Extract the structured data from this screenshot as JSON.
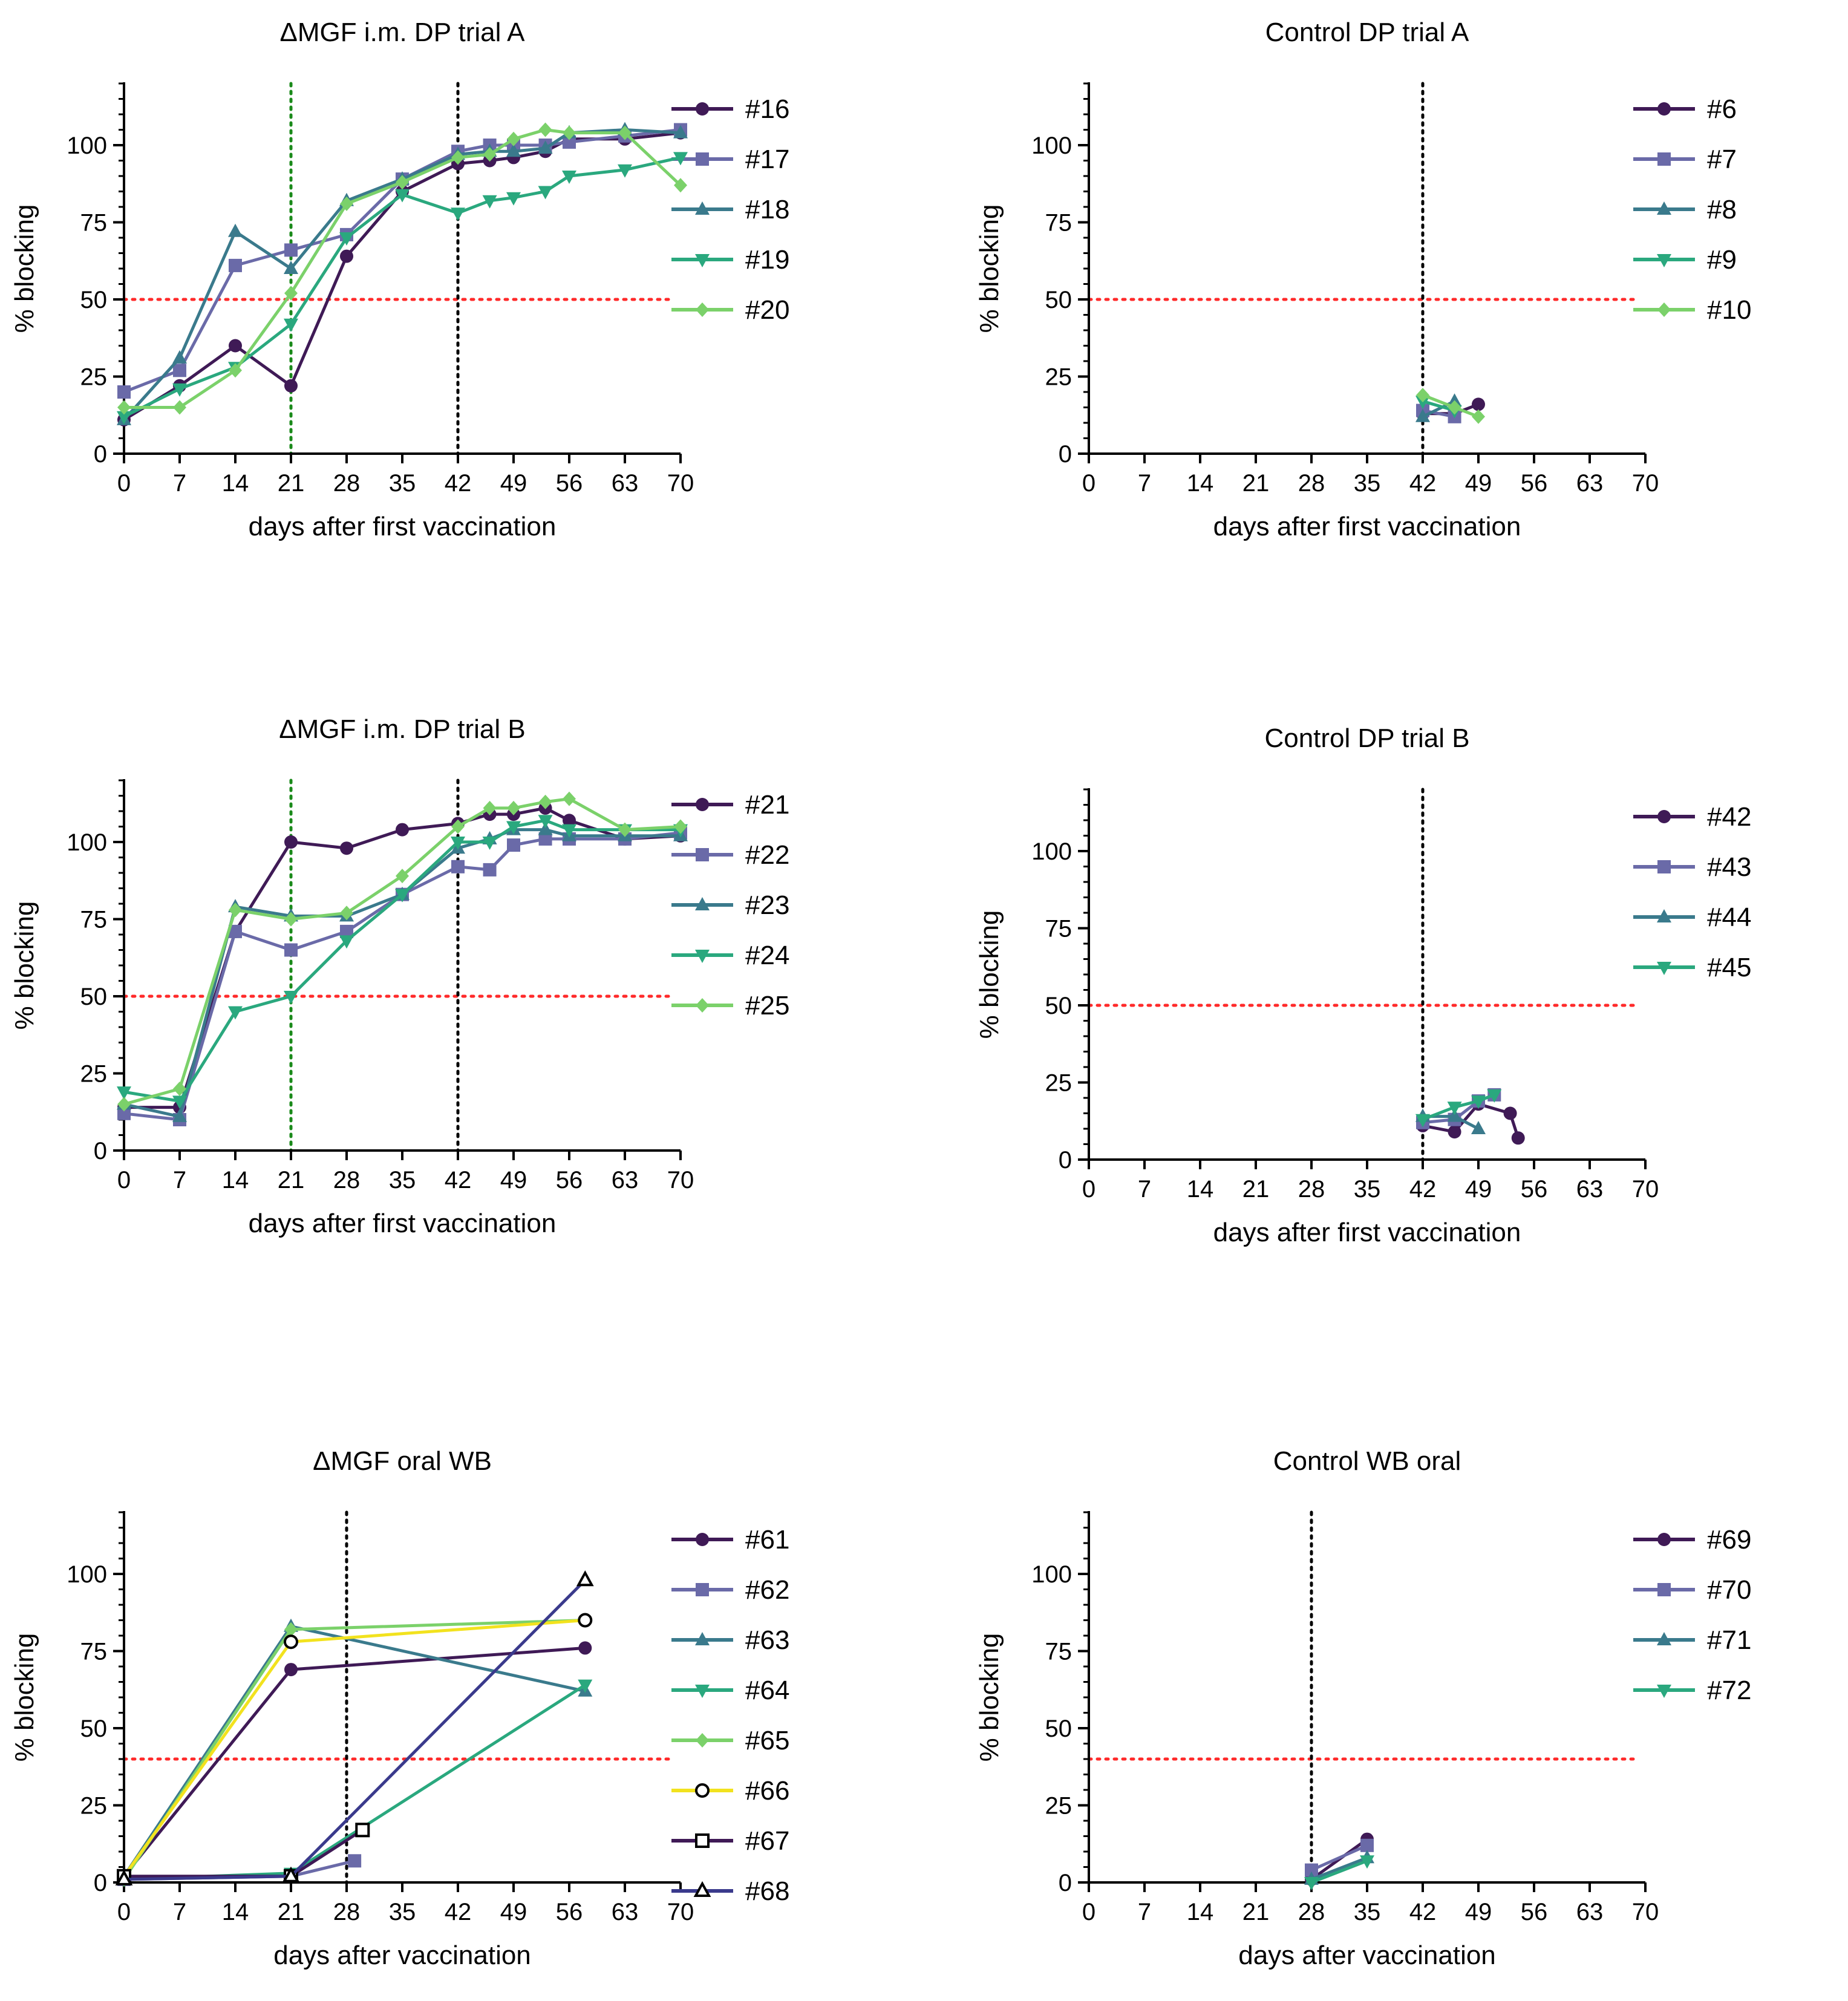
{
  "figure": {
    "background": "#ffffff"
  },
  "charts": [
    {
      "type": "line",
      "title": "ΔMGF i.m. DP trial A",
      "xlabel": "days after first vaccination",
      "ylabel": "% blocking",
      "xlim": [
        0,
        70
      ],
      "ylim": [
        0,
        120
      ],
      "xticks": [
        "0",
        "7",
        "14",
        "21",
        "28",
        "35",
        "42",
        "49",
        "56",
        "63",
        "70"
      ],
      "yticks": [
        "0",
        "25",
        "50",
        "75",
        "100"
      ],
      "threshold": 50,
      "vlines": [
        {
          "x": 21,
          "color": "#1a8a1a"
        },
        {
          "x": 42,
          "color": "#000000"
        }
      ],
      "series": [
        {
          "name": "#16",
          "color": "#3f1a56",
          "marker": "circle",
          "x": [
            0,
            7,
            14,
            21,
            28,
            35,
            42,
            46,
            49,
            53,
            56,
            63,
            70
          ],
          "y": [
            11,
            22,
            35,
            22,
            64,
            85,
            94,
            95,
            96,
            98,
            102,
            102,
            104
          ]
        },
        {
          "name": "#17",
          "color": "#6a6aa8",
          "marker": "square",
          "x": [
            0,
            7,
            14,
            21,
            28,
            35,
            42,
            46,
            49,
            53,
            56,
            63,
            70
          ],
          "y": [
            20,
            27,
            61,
            66,
            71,
            89,
            98,
            100,
            100,
            100,
            101,
            103,
            105
          ]
        },
        {
          "name": "#18",
          "color": "#3a7a8c",
          "marker": "triangle-up",
          "x": [
            0,
            7,
            14,
            21,
            28,
            35,
            42,
            46,
            49,
            53,
            56,
            63,
            70
          ],
          "y": [
            11,
            31,
            72,
            60,
            82,
            89,
            97,
            98,
            98,
            99,
            104,
            105,
            104
          ]
        },
        {
          "name": "#19",
          "color": "#2aa87e",
          "marker": "triangle-down",
          "x": [
            0,
            7,
            14,
            21,
            28,
            35,
            42,
            46,
            49,
            53,
            56,
            63,
            70
          ],
          "y": [
            12,
            21,
            28,
            42,
            70,
            84,
            78,
            82,
            83,
            85,
            90,
            92,
            96
          ]
        },
        {
          "name": "#20",
          "color": "#7bd16a",
          "marker": "diamond",
          "x": [
            0,
            7,
            14,
            21,
            28,
            35,
            42,
            46,
            49,
            53,
            56,
            63,
            70
          ],
          "y": [
            15,
            15,
            27,
            52,
            81,
            88,
            96,
            97,
            102,
            105,
            104,
            104,
            87
          ]
        }
      ]
    },
    {
      "type": "line",
      "title": "Control DP trial A",
      "xlabel": "days after first vaccination",
      "ylabel": "% blocking",
      "xlim": [
        0,
        70
      ],
      "ylim": [
        0,
        120
      ],
      "xticks": [
        "0",
        "7",
        "14",
        "21",
        "28",
        "35",
        "42",
        "49",
        "56",
        "63",
        "70"
      ],
      "yticks": [
        "0",
        "25",
        "50",
        "75",
        "100"
      ],
      "threshold": 50,
      "vlines": [
        {
          "x": 42,
          "color": "#000000"
        }
      ],
      "series": [
        {
          "name": "#6",
          "color": "#3f1a56",
          "marker": "circle",
          "x": [
            42,
            46,
            49
          ],
          "y": [
            13,
            13,
            16
          ]
        },
        {
          "name": "#7",
          "color": "#6a6aa8",
          "marker": "square",
          "x": [
            42,
            46
          ],
          "y": [
            14,
            12
          ]
        },
        {
          "name": "#8",
          "color": "#3a7a8c",
          "marker": "triangle-up",
          "x": [
            42,
            46
          ],
          "y": [
            12,
            17
          ]
        },
        {
          "name": "#9",
          "color": "#2aa87e",
          "marker": "triangle-down",
          "x": [
            42,
            46
          ],
          "y": [
            17,
            14
          ]
        },
        {
          "name": "#10",
          "color": "#7bd16a",
          "marker": "diamond",
          "x": [
            42,
            46,
            49
          ],
          "y": [
            19,
            15,
            12
          ]
        }
      ]
    },
    {
      "type": "line",
      "title": "ΔMGF i.m. DP trial B",
      "xlabel": "days after first vaccination",
      "ylabel": "% blocking",
      "xlim": [
        0,
        70
      ],
      "ylim": [
        0,
        120
      ],
      "xticks": [
        "0",
        "7",
        "14",
        "21",
        "28",
        "35",
        "42",
        "49",
        "56",
        "63",
        "70"
      ],
      "yticks": [
        "0",
        "25",
        "50",
        "75",
        "100"
      ],
      "threshold": 50,
      "vlines": [
        {
          "x": 21,
          "color": "#1a8a1a"
        },
        {
          "x": 42,
          "color": "#000000"
        }
      ],
      "series": [
        {
          "name": "#21",
          "color": "#3f1a56",
          "marker": "circle",
          "x": [
            0,
            7,
            14,
            21,
            28,
            35,
            42,
            46,
            49,
            53,
            56,
            63,
            70
          ],
          "y": [
            14,
            14,
            71,
            100,
            98,
            104,
            106,
            109,
            109,
            111,
            107,
            101,
            102
          ]
        },
        {
          "name": "#22",
          "color": "#6a6aa8",
          "marker": "square",
          "x": [
            0,
            7,
            14,
            21,
            28,
            35,
            42,
            46,
            49,
            53,
            56,
            63,
            70
          ],
          "y": [
            12,
            10,
            71,
            65,
            71,
            83,
            92,
            91,
            99,
            101,
            101,
            101,
            103
          ]
        },
        {
          "name": "#23",
          "color": "#3a7a8c",
          "marker": "triangle-up",
          "x": [
            0,
            7,
            14,
            21,
            28,
            35,
            42,
            46,
            49,
            53,
            56,
            63,
            70
          ],
          "y": [
            15,
            11,
            79,
            76,
            76,
            83,
            98,
            101,
            104,
            104,
            102,
            102,
            102
          ]
        },
        {
          "name": "#24",
          "color": "#2aa87e",
          "marker": "triangle-down",
          "x": [
            0,
            7,
            14,
            21,
            28,
            35,
            42,
            46,
            49,
            53,
            56,
            63,
            70
          ],
          "y": [
            19,
            16,
            45,
            50,
            68,
            83,
            100,
            100,
            105,
            107,
            104,
            104,
            104
          ]
        },
        {
          "name": "#25",
          "color": "#7bd16a",
          "marker": "diamond",
          "x": [
            0,
            7,
            14,
            21,
            28,
            35,
            42,
            46,
            49,
            53,
            56,
            63,
            70
          ],
          "y": [
            15,
            20,
            78,
            75,
            77,
            89,
            105,
            111,
            111,
            113,
            114,
            104,
            105
          ]
        }
      ]
    },
    {
      "type": "line",
      "title": "Control DP trial B",
      "xlabel": "days after first vaccination",
      "ylabel": "% blocking",
      "xlim": [
        0,
        70
      ],
      "ylim": [
        0,
        120
      ],
      "xticks": [
        "0",
        "7",
        "14",
        "21",
        "28",
        "35",
        "42",
        "49",
        "56",
        "63",
        "70"
      ],
      "yticks": [
        "0",
        "25",
        "50",
        "75",
        "100"
      ],
      "threshold": 50,
      "vlines": [
        {
          "x": 42,
          "color": "#000000"
        }
      ],
      "series": [
        {
          "name": "#42",
          "color": "#3f1a56",
          "marker": "circle",
          "x": [
            42,
            46,
            49,
            53,
            54
          ],
          "y": [
            11,
            9,
            18,
            15,
            7
          ]
        },
        {
          "name": "#43",
          "color": "#6a6aa8",
          "marker": "square",
          "x": [
            42,
            46,
            49,
            51
          ],
          "y": [
            12,
            13,
            19,
            21
          ]
        },
        {
          "name": "#44",
          "color": "#3a7a8c",
          "marker": "triangle-up",
          "x": [
            42,
            46,
            49
          ],
          "y": [
            14,
            14,
            10
          ]
        },
        {
          "name": "#45",
          "color": "#2aa87e",
          "marker": "triangle-down",
          "x": [
            42,
            46,
            49,
            51
          ],
          "y": [
            13,
            17,
            19,
            21
          ]
        }
      ]
    },
    {
      "type": "line",
      "title": "ΔMGF oral WB",
      "xlabel": "days after vaccination",
      "ylabel": "% blocking",
      "xlim": [
        0,
        70
      ],
      "ylim": [
        0,
        120
      ],
      "xticks": [
        "0",
        "7",
        "14",
        "21",
        "28",
        "35",
        "42",
        "49",
        "56",
        "63",
        "70"
      ],
      "yticks": [
        "0",
        "25",
        "50",
        "75",
        "100"
      ],
      "threshold": 40,
      "vlines": [
        {
          "x": 28,
          "color": "#000000"
        }
      ],
      "series": [
        {
          "name": "#61",
          "color": "#3f1a56",
          "marker": "circle",
          "x": [
            0,
            21,
            58
          ],
          "y": [
            2,
            69,
            76
          ]
        },
        {
          "name": "#62",
          "color": "#6a6aa8",
          "marker": "square",
          "x": [
            0,
            21,
            29
          ],
          "y": [
            1,
            2,
            7
          ]
        },
        {
          "name": "#63",
          "color": "#3a7a8c",
          "marker": "triangle-up",
          "x": [
            0,
            21,
            58
          ],
          "y": [
            2,
            83,
            62
          ]
        },
        {
          "name": "#64",
          "color": "#2aa87e",
          "marker": "triangle-down",
          "x": [
            0,
            21,
            58
          ],
          "y": [
            1,
            3,
            64
          ]
        },
        {
          "name": "#65",
          "color": "#7bd16a",
          "marker": "diamond",
          "x": [
            0,
            21,
            58
          ],
          "y": [
            1,
            82,
            85
          ]
        },
        {
          "name": "#66",
          "color": "#f2e21e",
          "marker": "circle-open",
          "x": [
            0,
            21,
            58
          ],
          "y": [
            2,
            78,
            85
          ]
        },
        {
          "name": "#67",
          "color": "#3f1a56",
          "marker": "square-open",
          "x": [
            0,
            21,
            30
          ],
          "y": [
            2,
            2,
            17
          ]
        },
        {
          "name": "#68",
          "color": "#3a3a8c",
          "marker": "triangle-open",
          "x": [
            0,
            21,
            58
          ],
          "y": [
            1,
            2,
            98
          ]
        }
      ]
    },
    {
      "type": "line",
      "title": "Control WB oral",
      "xlabel": "days after vaccination",
      "ylabel": "% blocking",
      "xlim": [
        0,
        70
      ],
      "ylim": [
        0,
        120
      ],
      "xticks": [
        "0",
        "7",
        "14",
        "21",
        "28",
        "35",
        "42",
        "49",
        "56",
        "63",
        "70"
      ],
      "yticks": [
        "0",
        "25",
        "50",
        "75",
        "100"
      ],
      "threshold": 40,
      "vlines": [
        {
          "x": 28,
          "color": "#000000"
        }
      ],
      "series": [
        {
          "name": "#69",
          "color": "#3f1a56",
          "marker": "circle",
          "x": [
            28,
            35
          ],
          "y": [
            1,
            14
          ]
        },
        {
          "name": "#70",
          "color": "#6a6aa8",
          "marker": "square",
          "x": [
            28,
            35
          ],
          "y": [
            4,
            12
          ]
        },
        {
          "name": "#71",
          "color": "#3a7a8c",
          "marker": "triangle-up",
          "x": [
            28,
            35
          ],
          "y": [
            1,
            8
          ]
        },
        {
          "name": "#72",
          "color": "#2aa87e",
          "marker": "triangle-down",
          "x": [
            28,
            35
          ],
          "y": [
            0,
            7
          ]
        }
      ]
    }
  ]
}
